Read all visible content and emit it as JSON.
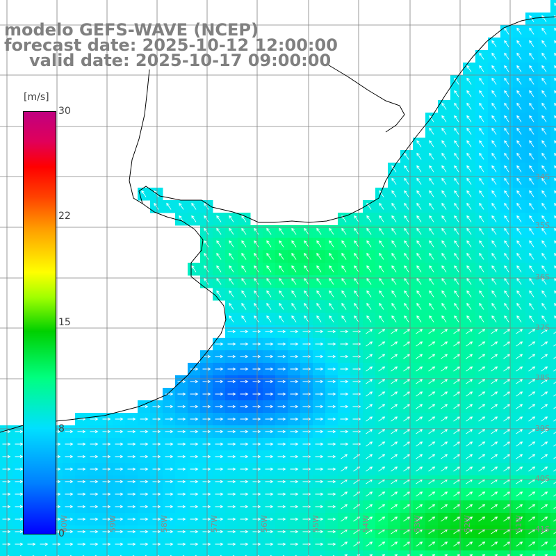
{
  "title": {
    "line1": "modelo GEFS-WAVE (NCEP)",
    "line2": "forecast date: 2025-10-12 12:00:00",
    "line3": "valid date: 2025-10-17 09:00:00"
  },
  "colorbar": {
    "unit": "[m/s]",
    "min": 0,
    "max": 30,
    "ticks": [
      "30",
      "22",
      "15",
      "8",
      "0"
    ],
    "colors": [
      "#0000ff",
      "#0080ff",
      "#00e0ff",
      "#00ff80",
      "#00d000",
      "#a0ff00",
      "#ffff00",
      "#ffa000",
      "#ff4000",
      "#ff0000",
      "#c00080"
    ]
  },
  "grid": {
    "lat_labels": [
      "34S",
      "35S",
      "36S",
      "37S",
      "38S",
      "39S",
      "40S",
      "41S"
    ],
    "lon_labels": [
      "60W",
      "59W",
      "58W",
      "57W",
      "56W",
      "55W",
      "54W",
      "53W",
      "52W",
      "51W"
    ]
  },
  "colors": {
    "land": "#ffffff",
    "grid_line": "#808080",
    "coast": "#000000",
    "arrow": "#ffffff"
  }
}
